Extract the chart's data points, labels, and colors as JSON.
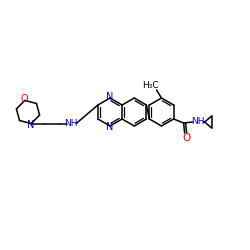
{
  "background_color": "#ffffff",
  "bond_color": "#000000",
  "nitrogen_color": "#0000cd",
  "oxygen_color": "#ff0000",
  "figsize": [
    2.5,
    2.5
  ],
  "dpi": 100,
  "xlim": [
    0,
    250
  ],
  "ylim": [
    0,
    250
  ]
}
